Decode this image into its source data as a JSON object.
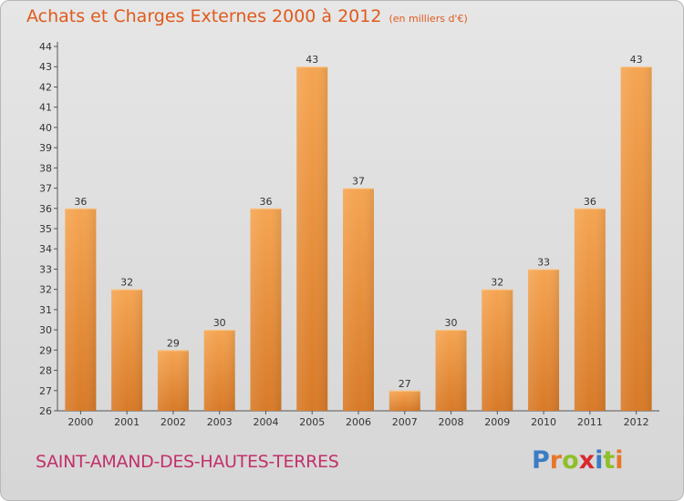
{
  "header": {
    "title": "Achats et Charges Externes 2000 à 2012",
    "unit": "(en milliers d'€)"
  },
  "footer": {
    "commune": "SAINT-AMAND-DES-HAUTES-TERRES",
    "logo": "Proxiti"
  },
  "colors": {
    "bar_top": "#f5a552",
    "bar_bottom": "#d87a28",
    "title": "#e05a1c",
    "commune": "#c2306a",
    "logo_letters": [
      "#3b7cc4",
      "#e8762a",
      "#8fbf2a",
      "#d8292f",
      "#3b7cc4",
      "#8fbf2a",
      "#e8762a"
    ]
  },
  "chart_data": {
    "type": "bar",
    "title": "Achats et Charges Externes 2000 à 2012",
    "subtitle": "(en milliers d'€)",
    "xlabel": "",
    "ylabel": "",
    "categories": [
      "2000",
      "2001",
      "2002",
      "2003",
      "2004",
      "2005",
      "2006",
      "2007",
      "2008",
      "2009",
      "2010",
      "2011",
      "2012"
    ],
    "values": [
      36,
      32,
      29,
      30,
      36,
      43,
      37,
      27,
      30,
      32,
      33,
      36,
      43
    ],
    "ylim": [
      26,
      44
    ],
    "yticks": [
      26,
      27,
      28,
      29,
      30,
      31,
      32,
      33,
      34,
      35,
      36,
      37,
      38,
      39,
      40,
      41,
      42,
      43,
      44
    ],
    "grid": false,
    "data_labels": true
  }
}
